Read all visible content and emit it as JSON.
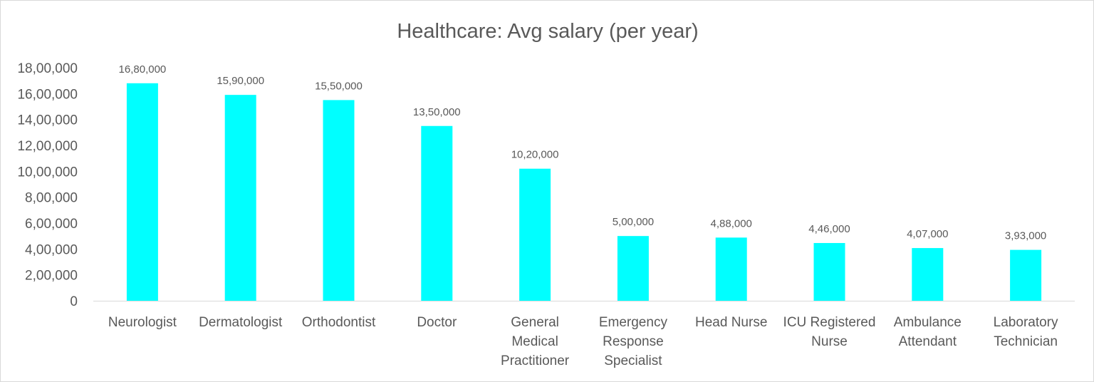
{
  "chart_data": {
    "type": "bar",
    "title": "Healthcare: Avg salary (per year)",
    "xlabel": "",
    "ylabel": "",
    "ylim": [
      0,
      1800000
    ],
    "yticks": [
      0,
      200000,
      400000,
      600000,
      800000,
      1000000,
      1200000,
      1400000,
      1600000,
      1800000
    ],
    "ytick_labels": [
      "0",
      "2,00,000",
      "4,00,000",
      "6,00,000",
      "8,00,000",
      "10,00,000",
      "12,00,000",
      "14,00,000",
      "16,00,000",
      "18,00,000"
    ],
    "categories": [
      [
        "Neurologist"
      ],
      [
        "Dermatologist"
      ],
      [
        "Orthodontist"
      ],
      [
        "Doctor"
      ],
      [
        "General",
        "Medical",
        "Practitioner"
      ],
      [
        "Emergency",
        "Response",
        "Specialist"
      ],
      [
        "Head Nurse"
      ],
      [
        "ICU Registered",
        "Nurse"
      ],
      [
        "Ambulance",
        "Attendant"
      ],
      [
        "Laboratory",
        "Technician"
      ]
    ],
    "values": [
      1680000,
      1590000,
      1550000,
      1350000,
      1020000,
      500000,
      488000,
      446000,
      407000,
      393000
    ],
    "data_labels": [
      "16,80,000",
      "15,90,000",
      "15,50,000",
      "13,50,000",
      "10,20,000",
      "5,00,000",
      "4,88,000",
      "4,46,000",
      "4,07,000",
      "3,93,000"
    ],
    "grid": false,
    "legend": "none",
    "bar_color": "#00FFFF",
    "text_color": "#595959",
    "axis_color": "#d9d9d9"
  }
}
